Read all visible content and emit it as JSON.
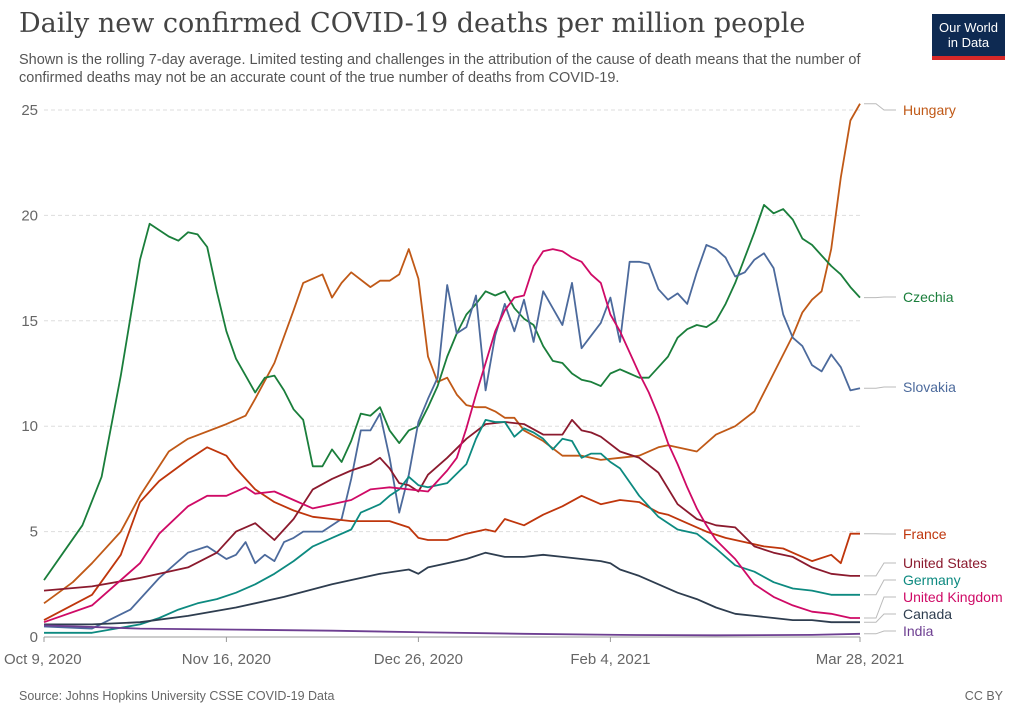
{
  "title": "Daily new confirmed COVID-19 deaths per million people",
  "subtitle": "Shown is the rolling 7-day average. Limited testing and challenges in the attribution of the cause of death means that the number of confirmed deaths may not be an accurate count of the true number of deaths from COVID-19.",
  "logo": {
    "line1": "Our World",
    "line2": "in Data",
    "bg": "#0e2a52",
    "accent": "#d62828"
  },
  "source": "Source: Johns Hopkins University CSSE COVID-19 Data",
  "license": "CC BY",
  "chart_data": {
    "type": "line",
    "xlabel": "",
    "ylabel": "",
    "x_ticks": [
      "Oct 9, 2020",
      "Nov 16, 2020",
      "Dec 26, 2020",
      "Feb 4, 2021",
      "Mar 28, 2021"
    ],
    "x_tick_days": [
      0,
      38,
      78,
      118,
      170
    ],
    "xlim": [
      0,
      170
    ],
    "y_ticks": [
      0,
      5,
      10,
      15,
      20,
      25
    ],
    "ylim": [
      0,
      25
    ],
    "grid": "horizontal dashed",
    "legend_placement": "right end labels",
    "series": [
      {
        "name": "Hungary",
        "color": "#c05917",
        "x": [
          0,
          6,
          10,
          16,
          20,
          26,
          30,
          38,
          42,
          44,
          48,
          52,
          54,
          58,
          60,
          62,
          64,
          68,
          70,
          72,
          74,
          76,
          78,
          80,
          82,
          84,
          86,
          88,
          90,
          92,
          94,
          96,
          98,
          100,
          104,
          108,
          112,
          116,
          120,
          124,
          128,
          130,
          136,
          140,
          144,
          148,
          152,
          156,
          158,
          160,
          162,
          164,
          166,
          168,
          170
        ],
        "y": [
          1.6,
          2.6,
          3.5,
          5.0,
          6.7,
          8.8,
          9.4,
          10.1,
          10.5,
          11.3,
          13.0,
          15.5,
          16.8,
          17.2,
          16.1,
          16.8,
          17.3,
          16.6,
          16.9,
          16.9,
          17.2,
          18.4,
          17.0,
          13.3,
          12.1,
          12.3,
          11.5,
          11.0,
          10.9,
          10.9,
          10.7,
          10.4,
          10.4,
          9.8,
          9.3,
          8.6,
          8.6,
          8.4,
          8.5,
          8.6,
          9.0,
          9.1,
          8.8,
          9.6,
          10.0,
          10.7,
          12.5,
          14.3,
          15.4,
          16.0,
          16.4,
          18.4,
          21.8,
          24.5,
          25.3
        ]
      },
      {
        "name": "Czechia",
        "color": "#1a7e3b",
        "x": [
          0,
          4,
          8,
          12,
          16,
          20,
          22,
          26,
          28,
          30,
          32,
          34,
          36,
          38,
          40,
          42,
          44,
          46,
          48,
          50,
          52,
          54,
          56,
          58,
          60,
          62,
          64,
          66,
          68,
          70,
          72,
          74,
          76,
          78,
          80,
          82,
          84,
          86,
          88,
          90,
          92,
          94,
          96,
          98,
          100,
          102,
          104,
          106,
          108,
          110,
          112,
          114,
          116,
          118,
          120,
          122,
          124,
          126,
          128,
          130,
          132,
          134,
          136,
          138,
          140,
          142,
          144,
          146,
          148,
          150,
          152,
          154,
          156,
          158,
          160,
          162,
          164,
          166,
          168,
          170
        ],
        "y": [
          2.7,
          4.0,
          5.3,
          7.6,
          12.4,
          17.9,
          19.6,
          19.0,
          18.8,
          19.2,
          19.1,
          18.5,
          16.4,
          14.5,
          13.2,
          12.4,
          11.6,
          12.3,
          12.4,
          11.7,
          10.8,
          10.3,
          8.1,
          8.1,
          8.9,
          8.3,
          9.3,
          10.6,
          10.5,
          10.9,
          9.8,
          9.2,
          9.8,
          10.0,
          10.9,
          11.9,
          13.3,
          14.4,
          15.3,
          15.8,
          16.4,
          16.2,
          16.4,
          15.6,
          15.1,
          14.8,
          13.8,
          13.1,
          13.0,
          12.5,
          12.2,
          12.1,
          11.9,
          12.5,
          12.7,
          12.5,
          12.3,
          12.3,
          12.8,
          13.3,
          14.2,
          14.6,
          14.8,
          14.7,
          15.0,
          15.8,
          16.8,
          18.0,
          19.2,
          20.5,
          20.1,
          20.3,
          19.8,
          18.9,
          18.6,
          18.1,
          17.6,
          17.2,
          16.6,
          16.1
        ]
      },
      {
        "name": "Slovakia",
        "color": "#4c6a9c",
        "x": [
          0,
          10,
          18,
          24,
          30,
          34,
          38,
          40,
          42,
          44,
          46,
          48,
          50,
          52,
          54,
          56,
          58,
          62,
          64,
          66,
          68,
          70,
          72,
          74,
          76,
          78,
          80,
          82,
          84,
          86,
          88,
          90,
          92,
          94,
          96,
          98,
          100,
          102,
          104,
          106,
          108,
          110,
          112,
          114,
          116,
          118,
          120,
          122,
          124,
          126,
          128,
          130,
          132,
          134,
          136,
          138,
          140,
          142,
          144,
          146,
          148,
          150,
          152,
          154,
          156,
          158,
          160,
          162,
          164,
          166,
          168,
          170
        ],
        "y": [
          0.5,
          0.4,
          1.3,
          2.8,
          4.0,
          4.3,
          3.7,
          3.9,
          4.5,
          3.5,
          3.9,
          3.6,
          4.5,
          4.7,
          5.0,
          5.0,
          5.0,
          5.6,
          7.5,
          9.8,
          9.8,
          10.6,
          8.5,
          5.9,
          7.7,
          10.2,
          11.3,
          12.3,
          16.7,
          14.4,
          14.7,
          16.2,
          11.7,
          14.3,
          15.8,
          14.5,
          16.0,
          14.0,
          16.4,
          15.6,
          14.8,
          16.8,
          13.7,
          14.3,
          14.9,
          16.1,
          14.0,
          17.8,
          17.8,
          17.7,
          16.5,
          16.0,
          16.3,
          15.8,
          17.3,
          18.6,
          18.4,
          18.0,
          17.1,
          17.3,
          17.9,
          18.2,
          17.5,
          15.3,
          14.2,
          13.8,
          12.9,
          12.6,
          13.4,
          12.8,
          11.7,
          11.8
        ]
      },
      {
        "name": "France",
        "color": "#bf360c",
        "x": [
          0,
          10,
          16,
          20,
          24,
          30,
          34,
          38,
          40,
          44,
          48,
          52,
          56,
          60,
          64,
          68,
          72,
          76,
          78,
          80,
          84,
          88,
          90,
          92,
          94,
          96,
          100,
          104,
          108,
          112,
          116,
          120,
          124,
          128,
          130,
          134,
          138,
          142,
          146,
          150,
          154,
          158,
          160,
          164,
          166,
          168,
          170
        ],
        "y": [
          0.8,
          2.0,
          3.9,
          6.4,
          7.4,
          8.4,
          9.0,
          8.6,
          8.0,
          7.0,
          6.4,
          6.0,
          5.7,
          5.6,
          5.5,
          5.5,
          5.5,
          5.2,
          4.7,
          4.6,
          4.6,
          4.9,
          5.0,
          5.1,
          5.0,
          5.6,
          5.3,
          5.8,
          6.2,
          6.7,
          6.3,
          6.5,
          6.4,
          5.9,
          5.8,
          5.4,
          5.0,
          4.7,
          4.5,
          4.3,
          4.2,
          3.8,
          3.6,
          3.9,
          3.5,
          4.9,
          4.9
        ]
      },
      {
        "name": "United States",
        "color": "#8b1a2e",
        "x": [
          0,
          10,
          20,
          30,
          36,
          40,
          44,
          48,
          52,
          56,
          60,
          64,
          68,
          70,
          72,
          74,
          76,
          78,
          80,
          84,
          88,
          92,
          96,
          100,
          104,
          108,
          110,
          112,
          114,
          116,
          120,
          124,
          128,
          132,
          136,
          140,
          144,
          148,
          152,
          156,
          160,
          164,
          168,
          170
        ],
        "y": [
          2.2,
          2.4,
          2.8,
          3.3,
          4.0,
          5.0,
          5.4,
          4.6,
          5.6,
          7.0,
          7.5,
          7.9,
          8.2,
          8.5,
          8.0,
          7.3,
          7.2,
          6.9,
          7.7,
          8.5,
          9.4,
          10.1,
          10.2,
          10.1,
          9.6,
          9.6,
          10.3,
          9.8,
          9.7,
          9.5,
          8.8,
          8.5,
          7.8,
          6.3,
          5.6,
          5.3,
          5.2,
          4.3,
          4.0,
          3.8,
          3.3,
          3.0,
          2.9,
          2.9
        ]
      },
      {
        "name": "Germany",
        "color": "#0d8a80",
        "x": [
          0,
          10,
          20,
          24,
          28,
          32,
          36,
          40,
          44,
          48,
          52,
          56,
          60,
          64,
          66,
          68,
          70,
          72,
          74,
          76,
          78,
          80,
          84,
          88,
          90,
          92,
          94,
          96,
          98,
          100,
          102,
          104,
          106,
          108,
          110,
          112,
          114,
          116,
          118,
          120,
          124,
          128,
          132,
          136,
          140,
          144,
          148,
          152,
          156,
          160,
          164,
          168,
          170
        ],
        "y": [
          0.2,
          0.2,
          0.6,
          0.9,
          1.3,
          1.6,
          1.8,
          2.1,
          2.5,
          3.0,
          3.6,
          4.3,
          4.7,
          5.1,
          5.9,
          6.1,
          6.3,
          6.7,
          7.0,
          7.6,
          7.2,
          7.1,
          7.3,
          8.2,
          9.4,
          10.3,
          10.2,
          10.2,
          9.5,
          9.9,
          9.7,
          9.4,
          8.9,
          9.4,
          9.3,
          8.5,
          8.7,
          8.7,
          8.3,
          8.0,
          6.7,
          5.7,
          5.1,
          4.9,
          4.2,
          3.4,
          3.1,
          2.6,
          2.3,
          2.2,
          2.0,
          2.0,
          2.0
        ]
      },
      {
        "name": "United Kingdom",
        "color": "#cf0a66",
        "x": [
          0,
          10,
          20,
          24,
          30,
          34,
          38,
          42,
          44,
          48,
          52,
          56,
          60,
          64,
          68,
          72,
          76,
          80,
          84,
          86,
          88,
          90,
          92,
          94,
          96,
          98,
          100,
          102,
          104,
          106,
          108,
          110,
          112,
          114,
          116,
          118,
          120,
          122,
          124,
          126,
          128,
          130,
          132,
          134,
          136,
          138,
          140,
          144,
          148,
          152,
          156,
          160,
          164,
          168,
          170
        ],
        "y": [
          0.7,
          1.5,
          3.5,
          4.9,
          6.2,
          6.7,
          6.7,
          7.1,
          6.8,
          6.9,
          6.5,
          6.1,
          6.3,
          6.5,
          7.0,
          7.1,
          7.0,
          6.9,
          7.9,
          8.5,
          9.9,
          11.5,
          13.0,
          14.5,
          15.5,
          16.1,
          16.2,
          17.6,
          18.3,
          18.4,
          18.3,
          18.0,
          17.8,
          17.2,
          16.8,
          15.3,
          14.5,
          13.5,
          12.5,
          11.6,
          10.5,
          9.2,
          8.2,
          7.1,
          6.1,
          5.3,
          4.6,
          3.7,
          2.5,
          1.9,
          1.5,
          1.2,
          1.1,
          0.9,
          0.9
        ]
      },
      {
        "name": "Canada",
        "color": "#2e3d4f",
        "x": [
          0,
          10,
          20,
          30,
          40,
          50,
          60,
          70,
          76,
          78,
          80,
          84,
          88,
          92,
          96,
          100,
          104,
          108,
          112,
          116,
          118,
          120,
          124,
          128,
          132,
          136,
          140,
          144,
          148,
          152,
          156,
          160,
          164,
          168,
          170
        ],
        "y": [
          0.6,
          0.6,
          0.7,
          1.0,
          1.4,
          1.9,
          2.5,
          3.0,
          3.2,
          3.0,
          3.3,
          3.5,
          3.7,
          4.0,
          3.8,
          3.8,
          3.9,
          3.8,
          3.7,
          3.6,
          3.5,
          3.2,
          2.9,
          2.5,
          2.1,
          1.8,
          1.4,
          1.1,
          1.0,
          0.9,
          0.8,
          0.8,
          0.7,
          0.7,
          0.7
        ]
      },
      {
        "name": "India",
        "color": "#6d3e91",
        "x": [
          0,
          20,
          40,
          60,
          80,
          100,
          120,
          140,
          160,
          170
        ],
        "y": [
          0.55,
          0.4,
          0.35,
          0.3,
          0.22,
          0.15,
          0.1,
          0.08,
          0.1,
          0.15
        ]
      }
    ]
  }
}
